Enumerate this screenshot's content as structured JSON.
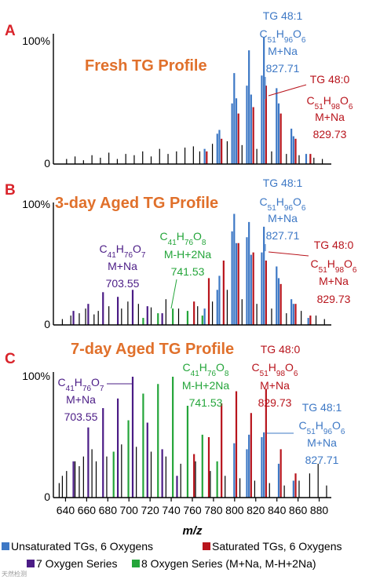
{
  "colors": {
    "blue": "#3d78c5",
    "red": "#b8141c",
    "purple": "#4b1c86",
    "green": "#24a53a",
    "black": "#000000",
    "title": "#e0702b",
    "panel_label": "#d9232a"
  },
  "legend": [
    {
      "label": "Unsaturated TGs, 6 Oxygens",
      "color": "#3d78c5"
    },
    {
      "label": "Saturated TGs, 6 Oxygens",
      "color": "#b8141c"
    },
    {
      "label": "7 Oxygen Series",
      "color": "#4b1c86"
    },
    {
      "label": "8 Oxygen Series (M+Na, M-H+2Na)",
      "color": "#24a53a"
    }
  ],
  "watermark": "天然检测",
  "chart_data": [
    {
      "type": "bar",
      "panel_label": "A",
      "title": "Fresh TG Profile",
      "y_tick_top": "100%",
      "y_tick_bottom": "0",
      "xlim": [
        630,
        890
      ],
      "ylim": [
        0,
        100
      ],
      "annotations": [
        {
          "key": "a1",
          "lines": [
            "TG 48:1",
            "C51H96O6",
            "M+Na",
            "827.71"
          ],
          "color": "#3d78c5"
        },
        {
          "key": "a2",
          "lines": [
            "TG 48:0",
            "C51H98O6",
            "M+Na",
            "829.73"
          ],
          "color": "#b8141c"
        }
      ],
      "series": [
        {
          "color": "#3d78c5",
          "x": [
            771.6,
            783.6,
            785.6,
            797.6,
            799.6,
            801.6,
            811.6,
            813.6,
            815.6,
            825.7,
            827.71,
            839.7,
            841.7,
            853.7,
            855.7,
            867.7
          ],
          "values": [
            12,
            24,
            27,
            48,
            72,
            52,
            62,
            90,
            55,
            70,
            100,
            60,
            48,
            28,
            22,
            8
          ]
        },
        {
          "color": "#b8141c",
          "x": [
            773.6,
            787.6,
            803.6,
            817.7,
            829.73,
            843.7,
            857.7,
            871.7
          ],
          "values": [
            10,
            20,
            40,
            45,
            62,
            40,
            20,
            8
          ]
        },
        {
          "color": "#000000",
          "x": [
            641,
            649,
            657,
            665,
            673,
            681,
            689,
            697,
            705,
            713,
            721,
            729,
            737,
            745,
            753,
            761,
            767,
            779,
            793,
            807,
            821,
            835,
            849,
            861,
            875,
            883
          ],
          "values": [
            4,
            6,
            3,
            7,
            5,
            9,
            4,
            8,
            7,
            10,
            6,
            12,
            8,
            10,
            13,
            14,
            10,
            16,
            18,
            15,
            12,
            10,
            8,
            7,
            5,
            4
          ]
        }
      ]
    },
    {
      "type": "bar",
      "panel_label": "B",
      "title": "3-day Aged TG Profile",
      "y_tick_top": "100%",
      "y_tick_bottom": "0",
      "xlim": [
        630,
        890
      ],
      "ylim": [
        0,
        100
      ],
      "annotations": [
        {
          "key": "b1",
          "lines": [
            "TG 48:1",
            "C51H96O6",
            "M+Na",
            "827.71"
          ],
          "color": "#3d78c5"
        },
        {
          "key": "b2",
          "lines": [
            "TG 48:0",
            "C51H98O6",
            "M+Na",
            "829.73"
          ],
          "color": "#b8141c"
        },
        {
          "key": "b3",
          "lines": [
            "C41H76O8",
            "M-H+2Na",
            "741.53"
          ],
          "color": "#24a53a"
        },
        {
          "key": "b4",
          "lines": [
            "C41H76O7",
            "M+Na",
            "703.55"
          ],
          "color": "#4b1c86"
        }
      ],
      "series": [
        {
          "color": "#3d78c5",
          "x": [
            771.6,
            783.6,
            785.6,
            797.6,
            799.6,
            801.6,
            811.6,
            813.6,
            815.6,
            825.7,
            827.71,
            839.7,
            841.7,
            853.7,
            855.7,
            869.7
          ],
          "values": [
            14,
            30,
            42,
            80,
            95,
            70,
            75,
            88,
            60,
            62,
            84,
            50,
            40,
            22,
            18,
            6
          ]
        },
        {
          "color": "#b8141c",
          "x": [
            761.6,
            775.6,
            789.6,
            803.6,
            817.7,
            829.73,
            843.7,
            857.7,
            871.7
          ],
          "values": [
            20,
            40,
            55,
            70,
            62,
            55,
            35,
            18,
            8
          ]
        },
        {
          "color": "#4b1c86",
          "x": [
            647.5,
            661.5,
            675.5,
            689.5,
            703.55,
            717.5,
            731.5
          ],
          "values": [
            12,
            18,
            28,
            24,
            30,
            16,
            10
          ]
        },
        {
          "color": "#24a53a",
          "x": [
            713.5,
            727.5,
            741.53,
            755.5,
            769.5
          ],
          "values": [
            6,
            10,
            14,
            12,
            8
          ]
        },
        {
          "color": "#000000",
          "x": [
            637,
            645,
            653,
            659,
            667,
            671,
            681,
            693,
            699,
            709,
            721,
            735,
            747,
            765,
            779,
            793,
            807,
            821,
            835,
            849,
            863,
            877,
            885
          ],
          "values": [
            5,
            8,
            10,
            14,
            9,
            12,
            16,
            14,
            20,
            18,
            15,
            22,
            14,
            16,
            20,
            30,
            22,
            18,
            14,
            10,
            12,
            8,
            5
          ]
        }
      ]
    },
    {
      "type": "bar",
      "panel_label": "C",
      "title": "7-day Aged TG Profile",
      "y_tick_top": "100%",
      "y_tick_bottom": "0",
      "xlim": [
        630,
        890
      ],
      "ylim": [
        0,
        100
      ],
      "xticks": [
        640,
        660,
        680,
        700,
        720,
        740,
        760,
        780,
        800,
        820,
        840,
        860,
        880
      ],
      "xlabel": "m/z",
      "annotations": [
        {
          "key": "c1",
          "lines": [
            "TG 48:0",
            "C51H98O6",
            "M+Na",
            "829.73"
          ],
          "color": "#b8141c"
        },
        {
          "key": "c2",
          "lines": [
            "C41H76O8",
            "M-H+2Na",
            "741.53"
          ],
          "color": "#24a53a"
        },
        {
          "key": "c3",
          "lines": [
            "C41H76O7",
            "M+Na",
            "703.55"
          ],
          "color": "#4b1c86"
        },
        {
          "key": "c4",
          "lines": [
            "TG 48:1",
            "C51H96O6",
            "M+Na",
            "827.71"
          ],
          "color": "#3d78c5"
        }
      ],
      "series": [
        {
          "color": "#3d78c5",
          "x": [
            799.6,
            811.6,
            813.6,
            825.7,
            827.71,
            841.7,
            855.7
          ],
          "values": [
            45,
            40,
            52,
            50,
            54,
            28,
            14
          ]
        },
        {
          "color": "#b8141c",
          "x": [
            761.6,
            775.6,
            787.6,
            801.6,
            815.6,
            829.73,
            843.7,
            857.7
          ],
          "values": [
            36,
            50,
            78,
            88,
            70,
            90,
            40,
            20
          ]
        },
        {
          "color": "#4b1c86",
          "x": [
            647.5,
            661.5,
            675.5,
            689.5,
            703.55,
            717.5,
            731.5,
            745.5
          ],
          "values": [
            30,
            58,
            74,
            82,
            100,
            62,
            40,
            18
          ]
        },
        {
          "color": "#24a53a",
          "x": [
            685.5,
            699.5,
            713.5,
            727.5,
            741.53,
            755.5,
            769.5,
            783.5
          ],
          "values": [
            38,
            64,
            86,
            94,
            100,
            76,
            52,
            30
          ]
        },
        {
          "color": "#000000",
          "x": [
            634,
            637,
            641,
            649,
            653,
            657,
            665,
            669,
            679,
            693,
            707,
            721,
            735,
            749,
            763,
            777,
            791,
            805,
            819,
            833,
            847,
            861,
            871,
            879,
            887
          ],
          "values": [
            12,
            18,
            22,
            30,
            26,
            34,
            40,
            30,
            34,
            44,
            42,
            38,
            34,
            28,
            30,
            22,
            18,
            16,
            14,
            12,
            10,
            14,
            20,
            28,
            10
          ]
        }
      ]
    }
  ]
}
